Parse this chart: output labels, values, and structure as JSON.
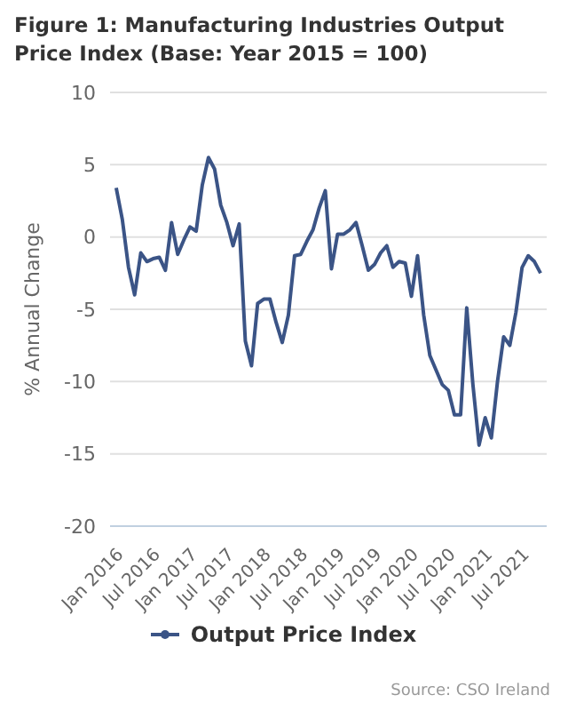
{
  "chart_data": {
    "type": "line",
    "title": "Figure 1: Manufacturing Industries Output Price Index (Base: Year 2015 = 100)",
    "ylabel": "% Annual Change",
    "annotations": [
      "Source: CSO Ireland"
    ],
    "x": [
      "2016-01",
      "2016-02",
      "2016-03",
      "2016-04",
      "2016-05",
      "2016-06",
      "2016-07",
      "2016-08",
      "2016-09",
      "2016-10",
      "2016-11",
      "2016-12",
      "2017-01",
      "2017-02",
      "2017-03",
      "2017-04",
      "2017-05",
      "2017-06",
      "2017-07",
      "2017-08",
      "2017-09",
      "2017-10",
      "2017-11",
      "2017-12",
      "2018-01",
      "2018-02",
      "2018-03",
      "2018-04",
      "2018-05",
      "2018-06",
      "2018-07",
      "2018-08",
      "2018-09",
      "2018-10",
      "2018-11",
      "2018-12",
      "2019-01",
      "2019-02",
      "2019-03",
      "2019-04",
      "2019-05",
      "2019-06",
      "2019-07",
      "2019-08",
      "2019-09",
      "2019-10",
      "2019-11",
      "2019-12",
      "2020-01",
      "2020-02",
      "2020-03",
      "2020-04",
      "2020-05",
      "2020-06",
      "2020-07",
      "2020-08",
      "2020-09",
      "2020-10",
      "2020-11",
      "2020-12",
      "2021-01",
      "2021-02",
      "2021-03",
      "2021-04",
      "2021-05",
      "2021-06",
      "2021-07",
      "2021-08",
      "2021-09",
      "2021-10"
    ],
    "series": [
      {
        "name": "Output Price Index",
        "color": "#3b5486",
        "values": [
          3.4,
          1.2,
          -2.1,
          -4.0,
          -1.1,
          -1.7,
          -1.5,
          -1.4,
          -2.3,
          1.0,
          -1.2,
          -0.2,
          0.7,
          0.4,
          3.6,
          5.5,
          4.7,
          2.2,
          1.0,
          -0.6,
          0.9,
          -7.2,
          -8.9,
          -4.6,
          -4.3,
          -4.3,
          -5.9,
          -7.3,
          -5.4,
          -1.3,
          -1.2,
          -0.3,
          0.5,
          2.0,
          3.2,
          -2.2,
          0.2,
          0.2,
          0.5,
          1.0,
          -0.6,
          -2.3,
          -1.9,
          -1.1,
          -0.6,
          -2.1,
          -1.7,
          -1.8,
          -4.1,
          -1.3,
          -5.4,
          -8.2,
          -9.2,
          -10.2,
          -10.6,
          -12.3,
          -12.3,
          -4.9,
          -10.2,
          -14.4,
          -12.5,
          -13.9,
          -10.0,
          -6.9,
          -7.5,
          -5.2,
          -2.1,
          -1.3,
          -1.7,
          -2.5
        ]
      }
    ],
    "xlim": [
      "2015-12",
      "2021-11"
    ],
    "xticks": [
      {
        "value": "2016-01",
        "label": "Jan 2016"
      },
      {
        "value": "2016-07",
        "label": "Jul 2016"
      },
      {
        "value": "2017-01",
        "label": "Jan 2017"
      },
      {
        "value": "2017-07",
        "label": "Jul 2017"
      },
      {
        "value": "2018-01",
        "label": "Jan 2018"
      },
      {
        "value": "2018-07",
        "label": "Jul 2018"
      },
      {
        "value": "2019-01",
        "label": "Jan 2019"
      },
      {
        "value": "2019-07",
        "label": "Jul 2019"
      },
      {
        "value": "2020-01",
        "label": "Jan 2020"
      },
      {
        "value": "2020-07",
        "label": "Jul 2020"
      },
      {
        "value": "2021-01",
        "label": "Jan 2021"
      },
      {
        "value": "2021-07",
        "label": "Jul 2021"
      }
    ],
    "ylim": [
      -20,
      10
    ],
    "yticks": [
      -20,
      -15,
      -10,
      -5,
      0,
      5,
      10
    ],
    "grid": "y",
    "legend": "bottom",
    "marker": "none",
    "line_style": "solid"
  }
}
